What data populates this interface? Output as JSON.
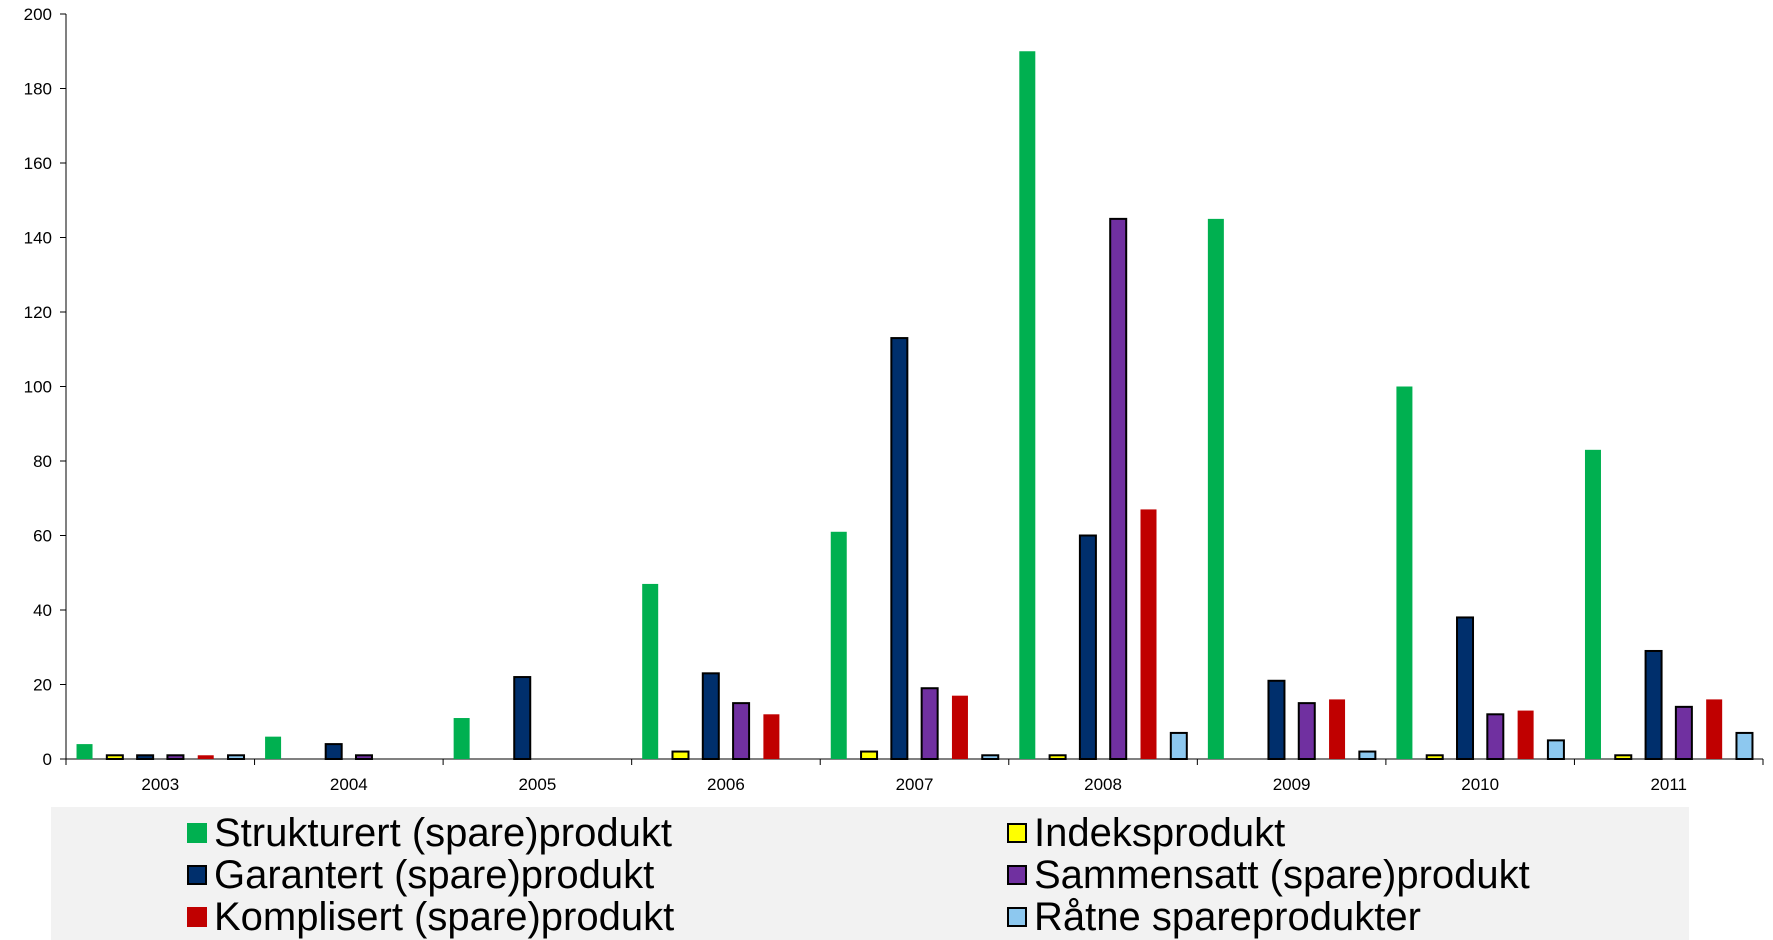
{
  "chart_data": {
    "type": "bar",
    "title": "",
    "xlabel": "",
    "ylabel": "",
    "ylim": [
      0,
      200
    ],
    "yticks": [
      0,
      20,
      40,
      60,
      80,
      100,
      120,
      140,
      160,
      180,
      200
    ],
    "categories": [
      "2003",
      "2004",
      "2005",
      "2006",
      "2007",
      "2008",
      "2009",
      "2010",
      "2011"
    ],
    "grid": false,
    "legend_position": "bottom",
    "series": [
      {
        "name": "Strukturert (spare)produkt",
        "color": "#00b050",
        "outlined": false,
        "values": [
          4,
          6,
          11,
          47,
          61,
          190,
          145,
          100,
          83
        ]
      },
      {
        "name": "Indeksprodukt",
        "color": "#ffff00",
        "outlined": true,
        "values": [
          1,
          0,
          0,
          2,
          2,
          1,
          0,
          1,
          1
        ]
      },
      {
        "name": "Garantert (spare)produkt",
        "color": "#002f6c",
        "outlined": true,
        "values": [
          1,
          4,
          22,
          23,
          113,
          60,
          21,
          38,
          29
        ]
      },
      {
        "name": "Sammensatt (spare)produkt",
        "color": "#7030a0",
        "outlined": true,
        "values": [
          1,
          1,
          0,
          15,
          19,
          145,
          15,
          12,
          14
        ]
      },
      {
        "name": "Komplisert (spare)produkt",
        "color": "#c00000",
        "outlined": false,
        "values": [
          1,
          0,
          0,
          12,
          17,
          67,
          16,
          13,
          16
        ]
      },
      {
        "name": "Råtne spareprodukter",
        "color": "#8dc8ef",
        "outlined": true,
        "values": [
          1,
          0,
          0,
          0,
          1,
          7,
          2,
          5,
          7
        ]
      }
    ]
  },
  "legend": {
    "items": [
      {
        "label": "Strukturert (spare)produkt",
        "color": "#00b050",
        "outlined": false
      },
      {
        "label": "Indeksprodukt",
        "color": "#ffff00",
        "outlined": true
      },
      {
        "label": "Garantert (spare)produkt",
        "color": "#002f6c",
        "outlined": true
      },
      {
        "label": "Sammensatt (spare)produkt",
        "color": "#7030a0",
        "outlined": true
      },
      {
        "label": "Komplisert (spare)produkt",
        "color": "#c00000",
        "outlined": false
      },
      {
        "label": "Råtne spareprodukter",
        "color": "#8dc8ef",
        "outlined": true
      }
    ]
  }
}
